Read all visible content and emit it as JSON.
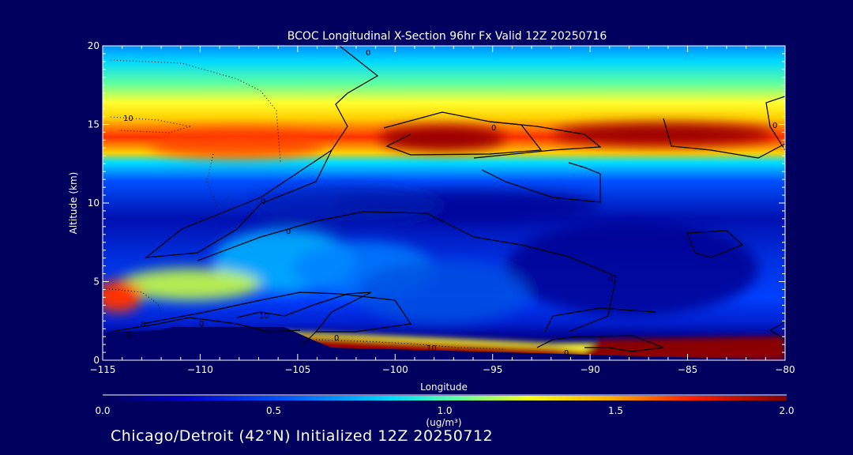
{
  "chart_data": {
    "type": "heatmap",
    "title": "BCOC Longitudinal X-Section 96hr  Fx Valid 12Z 20250716",
    "xlabel": "Longitude",
    "ylabel": "Altitude (km)",
    "xlim": [
      -115,
      -80
    ],
    "ylim": [
      0,
      20
    ],
    "x_ticks": [
      -115,
      -110,
      -105,
      -100,
      -95,
      -90,
      -85,
      -80
    ],
    "y_ticks": [
      0,
      5,
      10,
      15,
      20
    ],
    "colorbar": {
      "label": "(ug/m³)",
      "range": [
        0.0,
        2.0
      ],
      "ticks": [
        "0.0",
        "0.5",
        "1.0",
        "1.5",
        "2.0"
      ],
      "colormap": "rainbow: dark blue → blue → cyan → yellow → orange → red → dark red"
    },
    "contour_labels": [
      "0",
      "10",
      "0",
      "0",
      "0",
      "0",
      "10",
      "0",
      "0",
      "0",
      "10",
      "0",
      "0",
      "0"
    ],
    "features": [
      {
        "name": "upper layer",
        "altitude_km": [
          12.5,
          16
        ],
        "value_range": [
          1.2,
          2.0
        ]
      },
      {
        "name": "surface layer",
        "altitude_km": [
          0.5,
          2
        ],
        "value_range": [
          1.6,
          2.0
        ]
      }
    ]
  },
  "footer": "Chicago/Detroit (42°N) Initialized 12Z 20250712",
  "colors": {
    "background": "#00005f",
    "axes": "#ffffff",
    "contours": "#000000"
  }
}
